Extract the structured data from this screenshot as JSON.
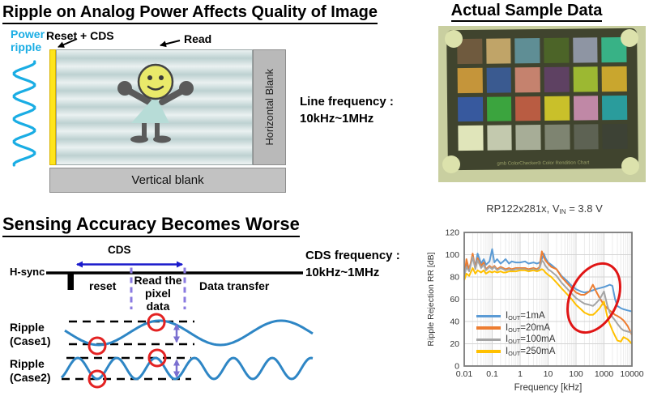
{
  "top_left": {
    "title": "Ripple on Analog Power Affects Quality of Image",
    "power_ripple_line1": "Power",
    "power_ripple_line2": "ripple",
    "reset_cds_label": "Reset + CDS",
    "read_label": "Read",
    "horizontal_blank_label": "Horizontal Blank",
    "vertical_blank_label": "Vertical blank",
    "line_frequency_line1": "Line frequency :",
    "line_frequency_line2": "10kHz~1MHz"
  },
  "top_right": {
    "title": "Actual Sample Data",
    "chart_caption": "gmb   ColorChecker® Color Rendition Chart",
    "photo_bg": "#c9cfa0",
    "chart_bg": "#40442e",
    "corner_dot_color": "#dce2ac",
    "patch_colors": [
      [
        "#6f5a3e",
        "#c0a468",
        "#5f8e95",
        "#4c6428",
        "#8e95a3",
        "#38b286"
      ],
      [
        "#c5953a",
        "#3a5a90",
        "#c5826e",
        "#5e4162",
        "#9cb832",
        "#c9a62e"
      ],
      [
        "#37599e",
        "#3ba43e",
        "#b95c42",
        "#c9c02a",
        "#c088a6",
        "#2a9c9c"
      ],
      [
        "#e0e5ba",
        "#c3c9ae",
        "#a7ad97",
        "#7e8471",
        "#5d6253",
        "#3d4235"
      ]
    ]
  },
  "bottom_left": {
    "title": "Sensing Accuracy Becomes Worse",
    "hsync_label": "H-sync",
    "cds_label": "CDS",
    "reset_label": "reset",
    "read_pixel_line1": "Read the",
    "read_pixel_line2": "pixel data",
    "data_transfer_label": "Data transfer",
    "cds_frequency_line1": "CDS frequency :",
    "cds_frequency_line2": "10kHz~1MHz",
    "ripple_case1_line1": "Ripple",
    "ripple_case1_line2": "(Case1)",
    "ripple_case2_line1": "Ripple",
    "ripple_case2_line2": "(Case2)"
  },
  "chart_data": {
    "type": "line",
    "title": "RP122x281x, VIN = 3.8 V",
    "title_parts": {
      "pre": "RP122x281x, V",
      "sub": "IN",
      "post": " = 3.8 V"
    },
    "xlabel": "Frequency [kHz]",
    "ylabel": "Ripple Rejection RR [dB]",
    "xscale": "log",
    "xlim": [
      0.01,
      10000
    ],
    "ylim": [
      0,
      120
    ],
    "xticks": [
      "0.01",
      "0.1",
      "1",
      "10",
      "100",
      "1000",
      "10000"
    ],
    "yticks": [
      0,
      20,
      40,
      60,
      80,
      100,
      120
    ],
    "grid": true,
    "legend_position": "lower-left",
    "annotation": "red ellipse highlighting ripple-rejection drop between ~100 kHz and ~3000 kHz",
    "x": [
      0.01,
      0.012,
      0.015,
      0.02,
      0.025,
      0.03,
      0.04,
      0.05,
      0.06,
      0.08,
      0.1,
      0.12,
      0.15,
      0.2,
      0.25,
      0.3,
      0.4,
      0.5,
      0.7,
      1,
      1.5,
      2,
      3,
      4,
      5,
      6,
      7,
      8,
      10,
      13,
      20,
      30,
      50,
      70,
      100,
      150,
      200,
      300,
      400,
      500,
      700,
      1000,
      1300,
      1600,
      2000,
      2500,
      3000,
      4000,
      5000,
      7000,
      10000
    ],
    "series": [
      {
        "name": "IOUT=1mA",
        "label_pre": "I",
        "label_sub": "OUT",
        "label_post": "=1mA",
        "color": "#5B9BD5",
        "values": [
          85,
          91,
          88,
          97,
          90,
          101,
          92,
          96,
          91,
          94,
          105,
          93,
          96,
          92,
          94,
          96,
          92,
          94,
          93,
          93,
          94,
          92,
          93,
          92,
          93,
          96,
          101,
          97,
          93,
          91,
          87,
          81,
          76,
          72,
          69,
          67,
          66,
          67,
          68,
          69,
          70,
          71,
          72,
          73,
          72,
          60,
          54,
          52,
          51,
          50,
          49
        ]
      },
      {
        "name": "IOUT=20mA",
        "label_pre": "I",
        "label_sub": "OUT",
        "label_post": "=20mA",
        "color": "#ED7D31",
        "values": [
          78,
          96,
          86,
          101,
          88,
          97,
          90,
          93,
          87,
          90,
          88,
          90,
          87,
          89,
          88,
          87,
          88,
          87,
          88,
          88,
          88,
          87,
          88,
          87,
          89,
          103,
          98,
          95,
          92,
          89,
          87,
          80,
          74,
          70,
          66,
          64,
          64,
          67,
          73,
          68,
          61,
          55,
          52,
          50,
          48,
          46,
          45,
          43,
          41,
          36,
          28
        ]
      },
      {
        "name": "IOUT=100mA",
        "label_pre": "I",
        "label_sub": "OUT",
        "label_post": "=100mA",
        "color": "#A5A5A5",
        "values": [
          80,
          89,
          85,
          98,
          87,
          95,
          88,
          91,
          86,
          89,
          87,
          89,
          86,
          88,
          87,
          86,
          87,
          86,
          87,
          87,
          87,
          86,
          87,
          86,
          88,
          95,
          93,
          90,
          87,
          85,
          81,
          75,
          69,
          65,
          61,
          58,
          56,
          55,
          54,
          56,
          60,
          67,
          55,
          48,
          44,
          41,
          38,
          34,
          32,
          31,
          30
        ]
      },
      {
        "name": "IOUT=250mA",
        "label_pre": "I",
        "label_sub": "OUT",
        "label_post": "=250mA",
        "color": "#FFC000",
        "values": [
          77,
          83,
          81,
          88,
          83,
          86,
          84,
          86,
          83,
          85,
          84,
          85,
          84,
          85,
          84,
          84,
          85,
          85,
          85,
          86,
          86,
          85,
          86,
          85,
          86,
          87,
          86,
          84,
          82,
          80,
          75,
          70,
          64,
          60,
          55,
          51,
          48,
          46,
          46,
          48,
          52,
          58,
          45,
          38,
          32,
          27,
          23,
          22,
          26,
          24,
          20
        ]
      }
    ]
  }
}
